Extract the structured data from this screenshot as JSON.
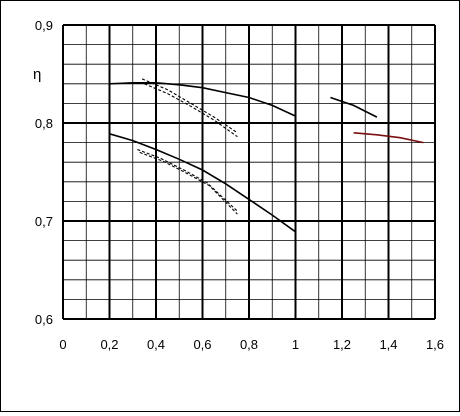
{
  "chart_data": {
    "type": "line",
    "title": "",
    "xlabel": "",
    "ylabel": "η",
    "xlim": [
      0,
      1.6
    ],
    "ylim": [
      0.6,
      0.9
    ],
    "x_ticks": [
      0,
      0.2,
      0.4,
      0.6,
      0.8,
      1.0,
      1.2,
      1.4,
      1.6
    ],
    "x_tick_labels": [
      "0",
      "0,2",
      "0,4",
      "0,6",
      "0,8",
      "1",
      "1,2",
      "1,4",
      "1,6"
    ],
    "y_ticks": [
      0.6,
      0.7,
      0.8,
      0.9
    ],
    "y_tick_labels": [
      "0,6",
      "0,7",
      "0,8",
      "0,9"
    ],
    "grid": true,
    "legend": "none",
    "series": [
      {
        "color": "#000000",
        "style": "solid",
        "x": [
          0.2,
          0.3,
          0.4,
          0.5,
          0.6,
          0.7,
          0.8,
          0.9,
          1.0
        ],
        "y": [
          0.84,
          0.841,
          0.841,
          0.839,
          0.836,
          0.831,
          0.826,
          0.818,
          0.807
        ]
      },
      {
        "color": "#000000",
        "style": "solid",
        "x": [
          0.2,
          0.3,
          0.4,
          0.5,
          0.6,
          0.7,
          0.8,
          0.9,
          1.0
        ],
        "y": [
          0.789,
          0.782,
          0.773,
          0.763,
          0.752,
          0.738,
          0.722,
          0.706,
          0.689
        ]
      },
      {
        "color": "#000000",
        "style": "dashed",
        "x": [
          0.34,
          0.45,
          0.55,
          0.65,
          0.75
        ],
        "y": [
          0.845,
          0.834,
          0.82,
          0.806,
          0.79
        ]
      },
      {
        "color": "#000000",
        "style": "dashed",
        "x": [
          0.35,
          0.45,
          0.55,
          0.65,
          0.75
        ],
        "y": [
          0.84,
          0.83,
          0.817,
          0.803,
          0.786
        ]
      },
      {
        "color": "#000000",
        "style": "dashed",
        "x": [
          0.32,
          0.42,
          0.52,
          0.62,
          0.75
        ],
        "y": [
          0.773,
          0.764,
          0.752,
          0.739,
          0.71
        ]
      },
      {
        "color": "#000000",
        "style": "dashed",
        "x": [
          0.33,
          0.43,
          0.53,
          0.63,
          0.75
        ],
        "y": [
          0.77,
          0.761,
          0.749,
          0.736,
          0.707
        ]
      },
      {
        "color": "#000000",
        "style": "solid",
        "x": [
          1.15,
          1.25,
          1.35
        ],
        "y": [
          0.826,
          0.818,
          0.806
        ]
      },
      {
        "color": "#7a1010",
        "style": "solid",
        "x": [
          1.25,
          1.35,
          1.45,
          1.55
        ],
        "y": [
          0.79,
          0.788,
          0.785,
          0.78
        ]
      }
    ]
  }
}
